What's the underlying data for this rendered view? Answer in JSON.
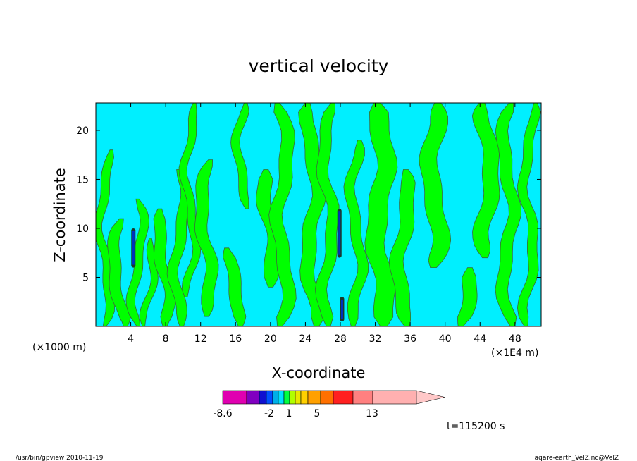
{
  "chart_data": {
    "type": "heatmap",
    "title": "vertical velocity",
    "xlabel": "X-coordinate",
    "ylabel": "Z-coordinate",
    "x_unit_left": "(×1000 m)",
    "x_unit_right": "(×1E4 m)",
    "x_ticks": [
      "4",
      "8",
      "12",
      "16",
      "20",
      "24",
      "28",
      "32",
      "36",
      "40",
      "44",
      "48"
    ],
    "x_tick_values": [
      4,
      8,
      12,
      16,
      20,
      24,
      28,
      32,
      36,
      40,
      44,
      48
    ],
    "y_ticks": [
      "5",
      "10",
      "15",
      "20"
    ],
    "y_tick_values": [
      5,
      10,
      15,
      20
    ],
    "xlim": [
      0,
      51
    ],
    "ylim": [
      0,
      22.8
    ],
    "time_label": "t=115200 s",
    "colorbar": {
      "tick_labels": [
        "-8.6",
        "-2",
        "1",
        "5",
        "13"
      ],
      "colors": [
        "#e000b0",
        "#8000c0",
        "#1010d0",
        "#0050ff",
        "#00b0e8",
        "#00e0ff",
        "#00ff40",
        "#b0ff00",
        "#e8e800",
        "#ffd000",
        "#ffa000",
        "#ff7000",
        "#ff2020",
        "#ff8080",
        "#ffb0b0",
        "#ffc8c8"
      ]
    },
    "field_colors": {
      "cyan": "#00efff",
      "green": "#00ff00",
      "contour": "#3a6a3a"
    },
    "green_bands": [
      {
        "x": 1.0,
        "z0": 0,
        "z1": 18,
        "w": 1.0
      },
      {
        "x": 2.6,
        "z0": 0,
        "z1": 11,
        "w": 1.3
      },
      {
        "x": 4.8,
        "z0": 0,
        "z1": 13,
        "w": 1.0
      },
      {
        "x": 6.0,
        "z0": 0,
        "z1": 9,
        "w": 0.8
      },
      {
        "x": 7.8,
        "z0": 0,
        "z1": 12,
        "w": 1.3
      },
      {
        "x": 9.6,
        "z0": 0,
        "z1": 16,
        "w": 1.2
      },
      {
        "x": 10.8,
        "z0": 3,
        "z1": 22.8,
        "w": 0.9
      },
      {
        "x": 12.6,
        "z0": 1,
        "z1": 17,
        "w": 1.4
      },
      {
        "x": 15.8,
        "z0": 0,
        "z1": 8,
        "w": 1.4
      },
      {
        "x": 16.8,
        "z0": 12,
        "z1": 22.8,
        "w": 1.0
      },
      {
        "x": 19.8,
        "z0": 4,
        "z1": 16,
        "w": 1.6
      },
      {
        "x": 21.4,
        "z0": 0,
        "z1": 22.8,
        "w": 1.5
      },
      {
        "x": 24.8,
        "z0": 0,
        "z1": 22.8,
        "w": 1.6
      },
      {
        "x": 26.6,
        "z0": 0,
        "z1": 22.8,
        "w": 1.3
      },
      {
        "x": 29.8,
        "z0": 0,
        "z1": 19,
        "w": 1.2
      },
      {
        "x": 32.6,
        "z0": 0,
        "z1": 22.8,
        "w": 2.2
      },
      {
        "x": 35.2,
        "z0": 0,
        "z1": 16,
        "w": 1.6
      },
      {
        "x": 38.8,
        "z0": 6,
        "z1": 22.8,
        "w": 2.0
      },
      {
        "x": 42.4,
        "z0": 0,
        "z1": 6,
        "w": 1.6
      },
      {
        "x": 44.8,
        "z0": 7,
        "z1": 22.8,
        "w": 1.8
      },
      {
        "x": 47.2,
        "z0": 0,
        "z1": 22.8,
        "w": 1.4
      },
      {
        "x": 49.6,
        "z0": 0,
        "z1": 22.8,
        "w": 1.1
      }
    ],
    "dark_cores": [
      {
        "x": 4.3,
        "z0": 6,
        "z1": 10
      },
      {
        "x": 27.9,
        "z0": 7,
        "z1": 12
      },
      {
        "x": 28.2,
        "z0": 0.5,
        "z1": 3
      }
    ]
  },
  "footer": {
    "left": "/usr/bin/gpview   2010-11-19",
    "right": "aqare-earth_VelZ.nc@VelZ"
  }
}
